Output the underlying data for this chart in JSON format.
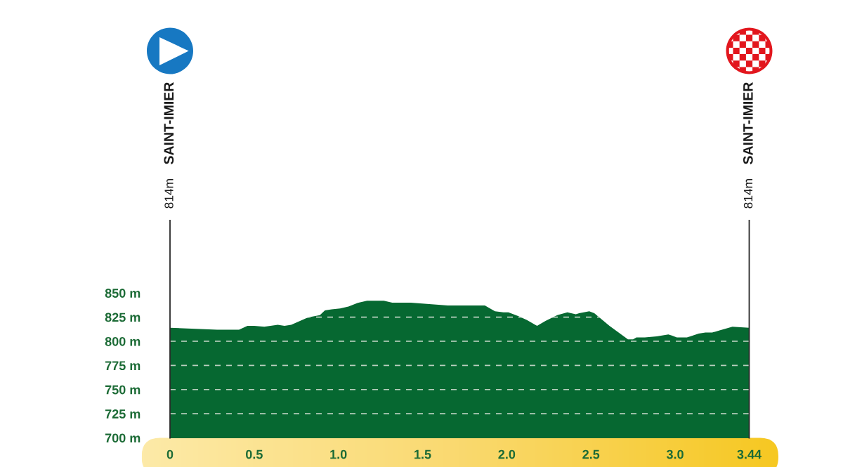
{
  "chart_data": {
    "type": "area",
    "x": [
      0,
      0.28,
      0.41,
      0.46,
      0.5,
      0.56,
      0.64,
      0.68,
      0.72,
      0.81,
      0.83,
      0.89,
      0.92,
      0.96,
      1.01,
      1.06,
      1.12,
      1.17,
      1.27,
      1.32,
      1.43,
      1.65,
      1.87,
      1.93,
      1.98,
      2.01,
      2.07,
      2.12,
      2.18,
      2.23,
      2.3,
      2.36,
      2.41,
      2.43,
      2.49,
      2.52,
      2.61,
      2.72,
      2.75,
      2.77,
      2.82,
      2.89,
      2.96,
      2.98,
      3.01,
      3.07,
      3.09,
      3.14,
      3.18,
      3.22,
      3.26,
      3.34,
      3.44
    ],
    "series": [
      {
        "color": "#066831",
        "values": [
          814,
          812,
          812,
          816,
          816,
          815,
          817,
          816,
          817,
          824,
          825,
          827,
          832,
          833,
          834,
          836,
          840,
          842,
          842,
          840,
          840,
          837,
          837,
          831,
          830,
          830,
          826,
          822,
          816,
          821,
          827,
          830,
          828,
          829,
          831,
          829,
          816,
          802,
          802,
          804,
          804,
          805,
          807,
          806,
          804,
          804,
          805,
          808,
          809,
          809,
          811,
          815,
          814
        ]
      }
    ],
    "xlim": [
      0,
      3.44
    ],
    "ylim": [
      700,
      925
    ],
    "xticks": [
      0,
      0.5,
      {
        "value": 1,
        "label": "1.0"
      },
      1.5,
      {
        "value": 2,
        "label": "2.0"
      },
      2.5,
      {
        "value": 3,
        "label": "3.0"
      },
      3.44
    ],
    "yticks": [
      {
        "value": 700,
        "label": "700 m"
      },
      {
        "value": 725,
        "label": "725 m"
      },
      {
        "value": 750,
        "label": "750 m"
      },
      {
        "value": 775,
        "label": "775 m"
      },
      {
        "value": 800,
        "label": "800 m"
      },
      {
        "value": 825,
        "label": "825 m"
      },
      {
        "value": 850,
        "label": "850 m"
      }
    ],
    "grid": "y",
    "annotations": [
      "814m SAINT-IMIER",
      "814m SAINT-IMIER"
    ]
  }
}
